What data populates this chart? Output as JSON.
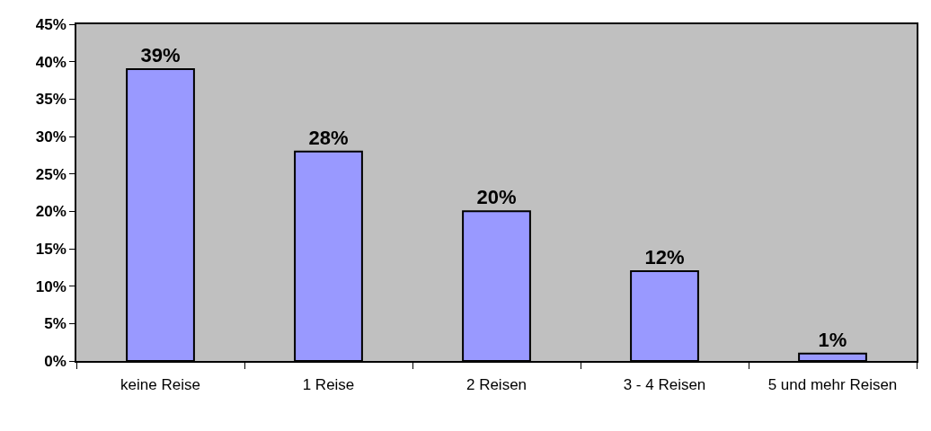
{
  "chart_data": {
    "type": "bar",
    "categories": [
      "keine Reise",
      "1 Reise",
      "2 Reisen",
      "3 - 4 Reisen",
      "5 und mehr Reisen"
    ],
    "values": [
      39,
      28,
      20,
      12,
      1
    ],
    "value_labels": [
      "39%",
      "28%",
      "20%",
      "12%",
      "1%"
    ],
    "color": "#9999ff",
    "ylim": [
      0,
      45
    ],
    "yticks": [
      {
        "value": 0,
        "label": "0%"
      },
      {
        "value": 5,
        "label": "5%"
      },
      {
        "value": 10,
        "label": "10%"
      },
      {
        "value": 15,
        "label": "15%"
      },
      {
        "value": 20,
        "label": "20%"
      },
      {
        "value": 25,
        "label": "25%"
      },
      {
        "value": 30,
        "label": "30%"
      },
      {
        "value": 35,
        "label": "35%"
      },
      {
        "value": 40,
        "label": "40%"
      },
      {
        "value": 45,
        "label": "45%"
      }
    ],
    "grid": false
  }
}
